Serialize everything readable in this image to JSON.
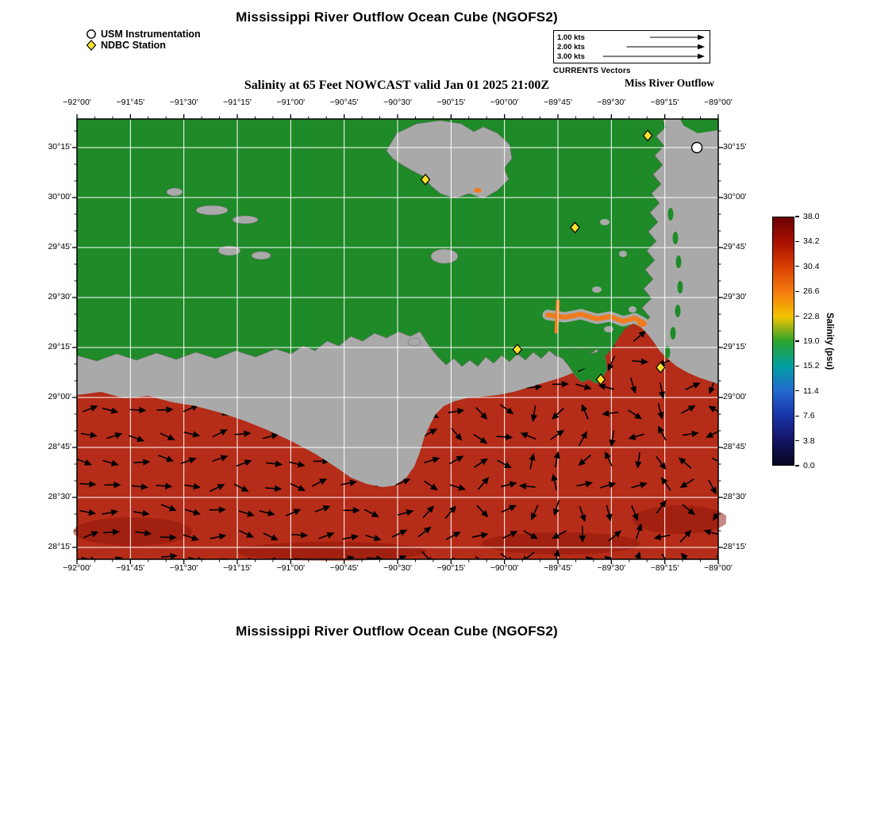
{
  "header": {
    "title": "Mississippi River Outflow Ocean Cube (NGOFS2)",
    "subtitle": "Salinity at 65 Feet NOWCAST valid Jan 01 2025 21:00Z",
    "region_label": "Miss River Outflow"
  },
  "footer": {
    "title": "Mississippi River Outflow Ocean Cube (NGOFS2)"
  },
  "marker_legend": [
    {
      "symbol": "circle",
      "label": "USM Instrumentation"
    },
    {
      "symbol": "diamond",
      "label": "NDBC Station"
    }
  ],
  "vector_legend": {
    "caption": "CURRENTS Vectors",
    "entries": [
      {
        "label": "1.00 kts"
      },
      {
        "label": "2.00 kts"
      },
      {
        "label": "3.00 kts"
      }
    ]
  },
  "axes": {
    "lon_labels": [
      "−92°00'",
      "−91°45'",
      "−91°30'",
      "−91°15'",
      "−91°00'",
      "−90°45'",
      "−90°30'",
      "−90°15'",
      "−90°00'",
      "−89°45'",
      "−89°30'",
      "−89°15'",
      "−89°00'"
    ],
    "lat_labels": [
      "30°15'",
      "30°00'",
      "29°45'",
      "29°30'",
      "29°15'",
      "29°00'",
      "28°45'",
      "28°30'",
      "28°15'"
    ]
  },
  "colorbar": {
    "title": "Salinity (psu)",
    "tick_labels": [
      "38.0",
      "34.2",
      "30.4",
      "26.6",
      "22.8",
      "19.0",
      "15.2",
      "11.4",
      "7.6",
      "3.8",
      "0.0"
    ],
    "stop_colors": [
      "#6b0000",
      "#a81000",
      "#d84000",
      "#f47a10",
      "#f5c400",
      "#2ca32c",
      "#00a0a0",
      "#2468d0",
      "#1a35a8",
      "#141466",
      "#06061f"
    ]
  },
  "stations": {
    "ndbc": [
      [
        -90.37,
        30.09
      ],
      [
        -89.67,
        29.85
      ],
      [
        -89.33,
        30.31
      ],
      [
        -89.94,
        29.24
      ],
      [
        -89.55,
        29.09
      ],
      [
        -89.27,
        29.15
      ]
    ],
    "usm": [
      [
        -89.1,
        30.25
      ]
    ]
  },
  "colors": {
    "land": "#a9a9a9",
    "shallow": "#1f8a28",
    "ocean": "#b52c18",
    "ocean_deep": "#8f1408",
    "river_plume": "#f07c1e",
    "station_fill": "#ffe32b",
    "grid": "#ffffff",
    "vector": "#000000"
  }
}
